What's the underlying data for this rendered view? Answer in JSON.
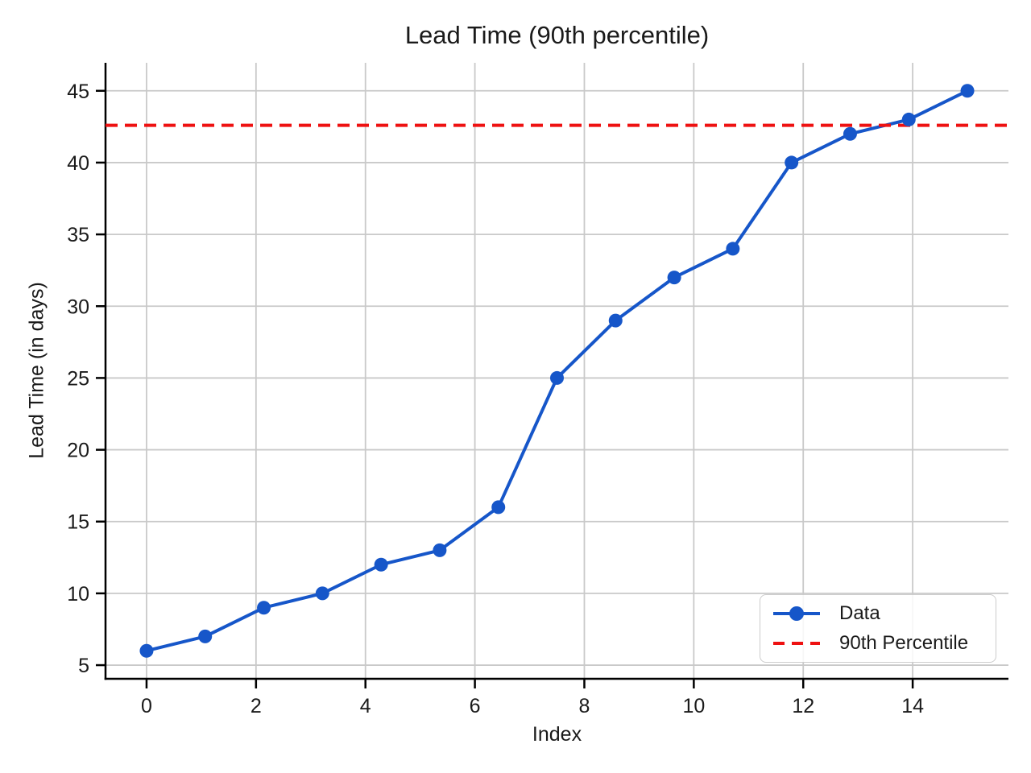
{
  "chart_data": {
    "type": "line",
    "title": "Lead Time (90th percentile)",
    "xlabel": "Index",
    "ylabel": "Lead Time (in days)",
    "x": [
      0,
      1.071,
      2.143,
      3.214,
      4.286,
      5.357,
      6.429,
      7.5,
      8.571,
      9.643,
      10.714,
      11.786,
      12.857,
      13.929,
      15
    ],
    "values": [
      6,
      7,
      9,
      10,
      12,
      13,
      16,
      25,
      29,
      32,
      34,
      40,
      42,
      43,
      45
    ],
    "series_name": "Data",
    "percentile_line": {
      "label": "90th Percentile",
      "value": 42.6
    },
    "xlim": [
      -0.75,
      15.75
    ],
    "ylim": [
      4.05,
      46.95
    ],
    "xticks": [
      0,
      2,
      4,
      6,
      8,
      10,
      12,
      14
    ],
    "yticks": [
      5,
      10,
      15,
      20,
      25,
      30,
      35,
      40,
      45
    ],
    "grid": true,
    "legend": {
      "position": "lower right",
      "items": [
        {
          "label": "Data",
          "style": "line-marker"
        },
        {
          "label": "90th Percentile",
          "style": "dashed"
        }
      ]
    },
    "colors": {
      "data_line": "#1656C9",
      "percentile_line": "#EE1111",
      "grid": "#C9C9C9",
      "spine": "#000000",
      "text": "#1a1a1a"
    }
  }
}
